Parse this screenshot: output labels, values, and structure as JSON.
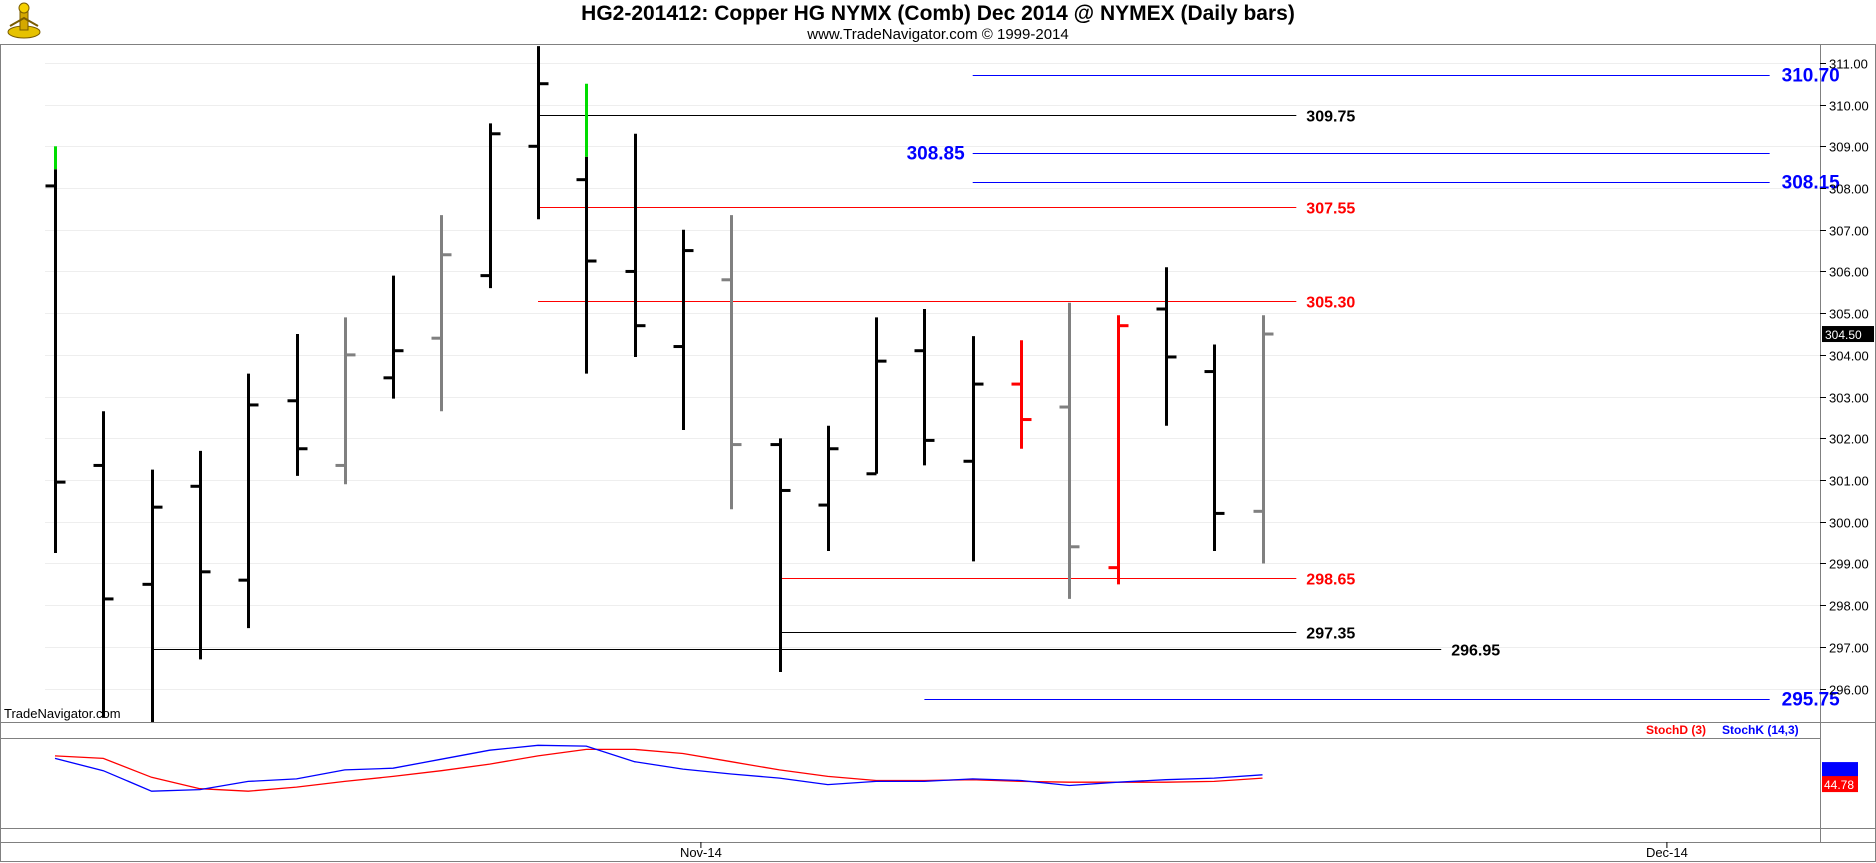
{
  "header": {
    "title": "HG2-201412:  Copper HG NYMX (Comb) Dec 2014 @ NYMEX  (Daily bars)",
    "subtitle": "www.TradeNavigator.com © 1999-2014"
  },
  "watermark": "TradeNavigator.com",
  "indicator": {
    "stochD_label": "StochD (3)",
    "stochK_label": "StochK (14,3)",
    "value_label": "44.78"
  },
  "colors": {
    "bullish": "#000000",
    "grey": "#808080",
    "red": "#ff0000",
    "green": "#00dd00",
    "blue": "#0000ff"
  },
  "chart_data": [
    {
      "type": "ohlc",
      "title": "HG2-201412:  Copper HG NYMX (Comb) Dec 2014 @ NYMEX  (Daily bars)",
      "xlabel": "",
      "ylabel": "",
      "ylim": [
        295.2,
        311.5
      ],
      "y_ticks": [
        "296.00",
        "297.00",
        "298.00",
        "299.00",
        "300.00",
        "301.00",
        "302.00",
        "303.00",
        "304.00",
        "305.00",
        "306.00",
        "307.00",
        "308.00",
        "309.00",
        "310.00",
        "311.00"
      ],
      "x_labels": [
        {
          "label": "Nov-14",
          "bar_index": 13
        },
        {
          "label": "Dec-14",
          "bar_index": 33
        }
      ],
      "last_price_label": "304.50",
      "bars": [
        {
          "open": 308.05,
          "high": 308.45,
          "low": 299.25,
          "close": 300.95,
          "color": "black",
          "high_tick_color": "green",
          "high_tick_top": 309.0
        },
        {
          "open": 301.35,
          "high": 302.65,
          "low": 295.3,
          "close": 298.15,
          "color": "black"
        },
        {
          "open": 298.5,
          "high": 301.25,
          "low": 295.2,
          "close": 300.35,
          "color": "black"
        },
        {
          "open": 300.85,
          "high": 301.7,
          "low": 296.7,
          "close": 298.8,
          "color": "black"
        },
        {
          "open": 298.6,
          "high": 303.55,
          "low": 297.45,
          "close": 302.8,
          "color": "black"
        },
        {
          "open": 302.9,
          "high": 304.5,
          "low": 301.1,
          "close": 301.75,
          "color": "black"
        },
        {
          "open": 301.35,
          "high": 304.9,
          "low": 300.9,
          "close": 304.0,
          "color": "grey"
        },
        {
          "open": 303.45,
          "high": 305.9,
          "low": 302.95,
          "close": 304.1,
          "color": "black"
        },
        {
          "open": 304.4,
          "high": 307.35,
          "low": 302.65,
          "close": 306.4,
          "color": "grey"
        },
        {
          "open": 305.9,
          "high": 309.55,
          "low": 305.6,
          "close": 309.3,
          "color": "black"
        },
        {
          "open": 309.0,
          "high": 311.4,
          "low": 307.25,
          "close": 310.5,
          "color": "black"
        },
        {
          "open": 308.2,
          "high": 308.75,
          "low": 303.55,
          "close": 306.25,
          "color": "black",
          "high_tick_color": "green",
          "high_tick_top": 310.5
        },
        {
          "open": 306.0,
          "high": 309.3,
          "low": 303.95,
          "close": 304.7,
          "color": "black"
        },
        {
          "open": 304.2,
          "high": 307.0,
          "low": 302.2,
          "close": 306.5,
          "color": "black"
        },
        {
          "open": 305.8,
          "high": 307.35,
          "low": 300.3,
          "close": 301.85,
          "color": "grey"
        },
        {
          "open": 301.85,
          "high": 302.0,
          "low": 296.4,
          "close": 300.75,
          "color": "black"
        },
        {
          "open": 300.4,
          "high": 302.3,
          "low": 299.3,
          "close": 301.75,
          "color": "black"
        },
        {
          "open": 301.15,
          "high": 304.9,
          "low": 301.15,
          "close": 303.85,
          "color": "black"
        },
        {
          "open": 304.1,
          "high": 305.1,
          "low": 301.35,
          "close": 301.95,
          "color": "black"
        },
        {
          "open": 301.45,
          "high": 304.45,
          "low": 299.05,
          "close": 303.3,
          "color": "black"
        },
        {
          "open": 303.3,
          "high": 304.35,
          "low": 301.75,
          "close": 302.45,
          "color": "red"
        },
        {
          "open": 302.75,
          "high": 305.25,
          "low": 298.15,
          "close": 299.4,
          "color": "grey"
        },
        {
          "open": 298.9,
          "high": 304.95,
          "low": 298.5,
          "close": 304.7,
          "color": "red"
        },
        {
          "open": 305.1,
          "high": 306.1,
          "low": 302.3,
          "close": 303.95,
          "color": "black"
        },
        {
          "open": 303.6,
          "high": 304.25,
          "low": 299.3,
          "close": 300.2,
          "color": "black"
        },
        {
          "open": 300.25,
          "high": 304.95,
          "low": 299.0,
          "close": 304.5,
          "color": "grey"
        }
      ],
      "levels": [
        {
          "value": 310.7,
          "label": "310.70",
          "color": "blue",
          "from_bar": 19,
          "to_bar": 35.5,
          "label_pos": "right"
        },
        {
          "value": 309.75,
          "label": "309.75",
          "color": "black",
          "from_bar": 10,
          "to_bar": 25.7,
          "label_pos": "after"
        },
        {
          "value": 308.85,
          "label": "308.85",
          "color": "blue",
          "from_bar": 19,
          "to_bar": 35.5,
          "label_pos": "before"
        },
        {
          "value": 308.15,
          "label": "308.15",
          "color": "blue",
          "from_bar": 19,
          "to_bar": 35.5,
          "label_pos": "right"
        },
        {
          "value": 307.55,
          "label": "307.55",
          "color": "red",
          "from_bar": 10,
          "to_bar": 25.7,
          "label_pos": "after"
        },
        {
          "value": 305.3,
          "label": "305.30",
          "color": "red",
          "from_bar": 10,
          "to_bar": 25.7,
          "label_pos": "after"
        },
        {
          "value": 298.65,
          "label": "298.65",
          "color": "red",
          "from_bar": 15,
          "to_bar": 25.7,
          "label_pos": "after"
        },
        {
          "value": 297.35,
          "label": "297.35",
          "color": "black",
          "from_bar": 15,
          "to_bar": 25.7,
          "label_pos": "after"
        },
        {
          "value": 296.95,
          "label": "296.95",
          "color": "black",
          "from_bar": 2,
          "to_bar": 28.7,
          "label_pos": "after"
        },
        {
          "value": 295.75,
          "label": "295.75",
          "color": "blue",
          "from_bar": 18,
          "to_bar": 35.5,
          "label_pos": "right"
        }
      ]
    },
    {
      "type": "line",
      "title": "",
      "ylim": [
        0,
        100
      ],
      "series": [
        {
          "name": "StochD (3)",
          "color": "red",
          "values": [
            83,
            80,
            57,
            43,
            40,
            45,
            52,
            58,
            65,
            73,
            83,
            91,
            91,
            86,
            76,
            66,
            58,
            53,
            53,
            54,
            52,
            51,
            51,
            51,
            52,
            56
          ]
        },
        {
          "name": "StochK (14,3)",
          "color": "blue",
          "values": [
            80,
            65,
            40,
            42,
            52,
            55,
            66,
            68,
            79,
            90,
            96,
            95,
            76,
            67,
            61,
            56,
            48,
            52,
            52,
            55,
            53,
            47,
            51,
            54,
            56,
            60
          ]
        }
      ]
    }
  ]
}
